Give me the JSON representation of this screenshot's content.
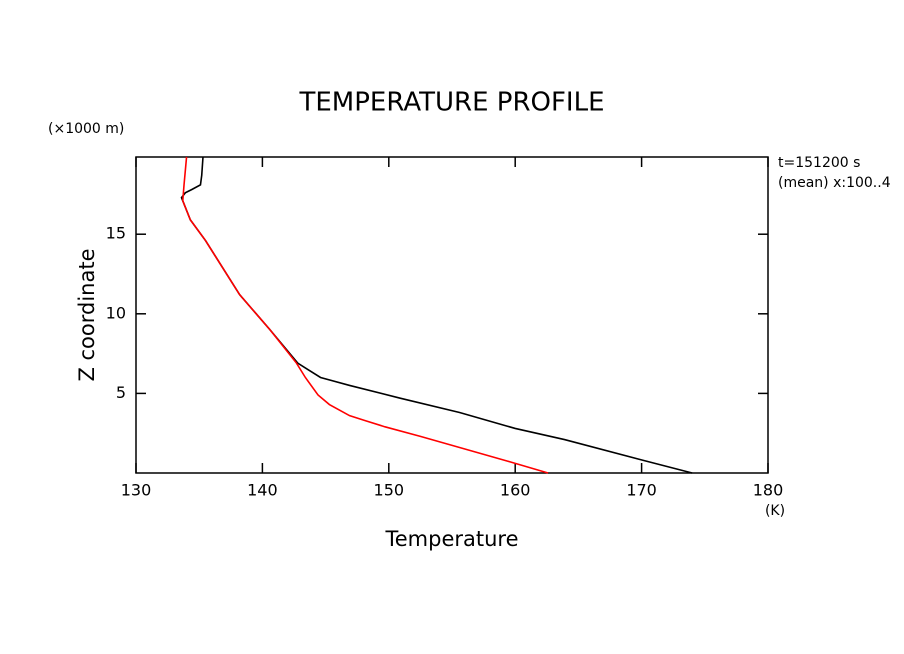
{
  "chart_data": {
    "type": "line",
    "title": "TEMPERATURE PROFILE",
    "x_label": "Temperature",
    "y_label": "Z coordinate",
    "x_unit": "(K)",
    "y_unit": "(×1000 m)",
    "annotations": [
      "t=151200 s",
      "(mean) x:100..4"
    ],
    "xlim": [
      130,
      180
    ],
    "xticks": [
      130,
      140,
      150,
      160,
      170,
      180
    ],
    "ylim": [
      0,
      19.85
    ],
    "yticks": [
      5,
      10,
      15
    ],
    "series": [
      {
        "color": "#000000",
        "x": [
          174.0,
          170.1,
          163.9,
          160.0,
          155.6,
          150.9,
          146.9,
          144.6,
          143.6,
          142.8,
          140.6,
          138.2,
          135.5,
          134.3,
          133.6,
          133.9,
          134.4,
          135.1,
          135.2,
          135.3
        ],
        "values": [
          0,
          0.8,
          2.1,
          2.8,
          3.8,
          4.7,
          5.5,
          6.0,
          6.5,
          6.9,
          9.0,
          11.2,
          14.6,
          15.9,
          17.3,
          17.6,
          17.8,
          18.1,
          18.7,
          19.85
        ]
      },
      {
        "color": "#ff0000",
        "x": [
          162.6,
          159.6,
          155.6,
          152.5,
          149.7,
          148.1,
          146.9,
          145.3,
          144.4,
          143.4,
          142.7,
          140.6,
          138.2,
          135.5,
          134.3,
          133.7,
          133.8,
          134.0
        ],
        "values": [
          0,
          0.7,
          1.6,
          2.3,
          2.9,
          3.3,
          3.6,
          4.3,
          4.9,
          6.0,
          6.9,
          9.0,
          11.2,
          14.6,
          15.9,
          17.1,
          18.1,
          19.85
        ]
      }
    ]
  }
}
